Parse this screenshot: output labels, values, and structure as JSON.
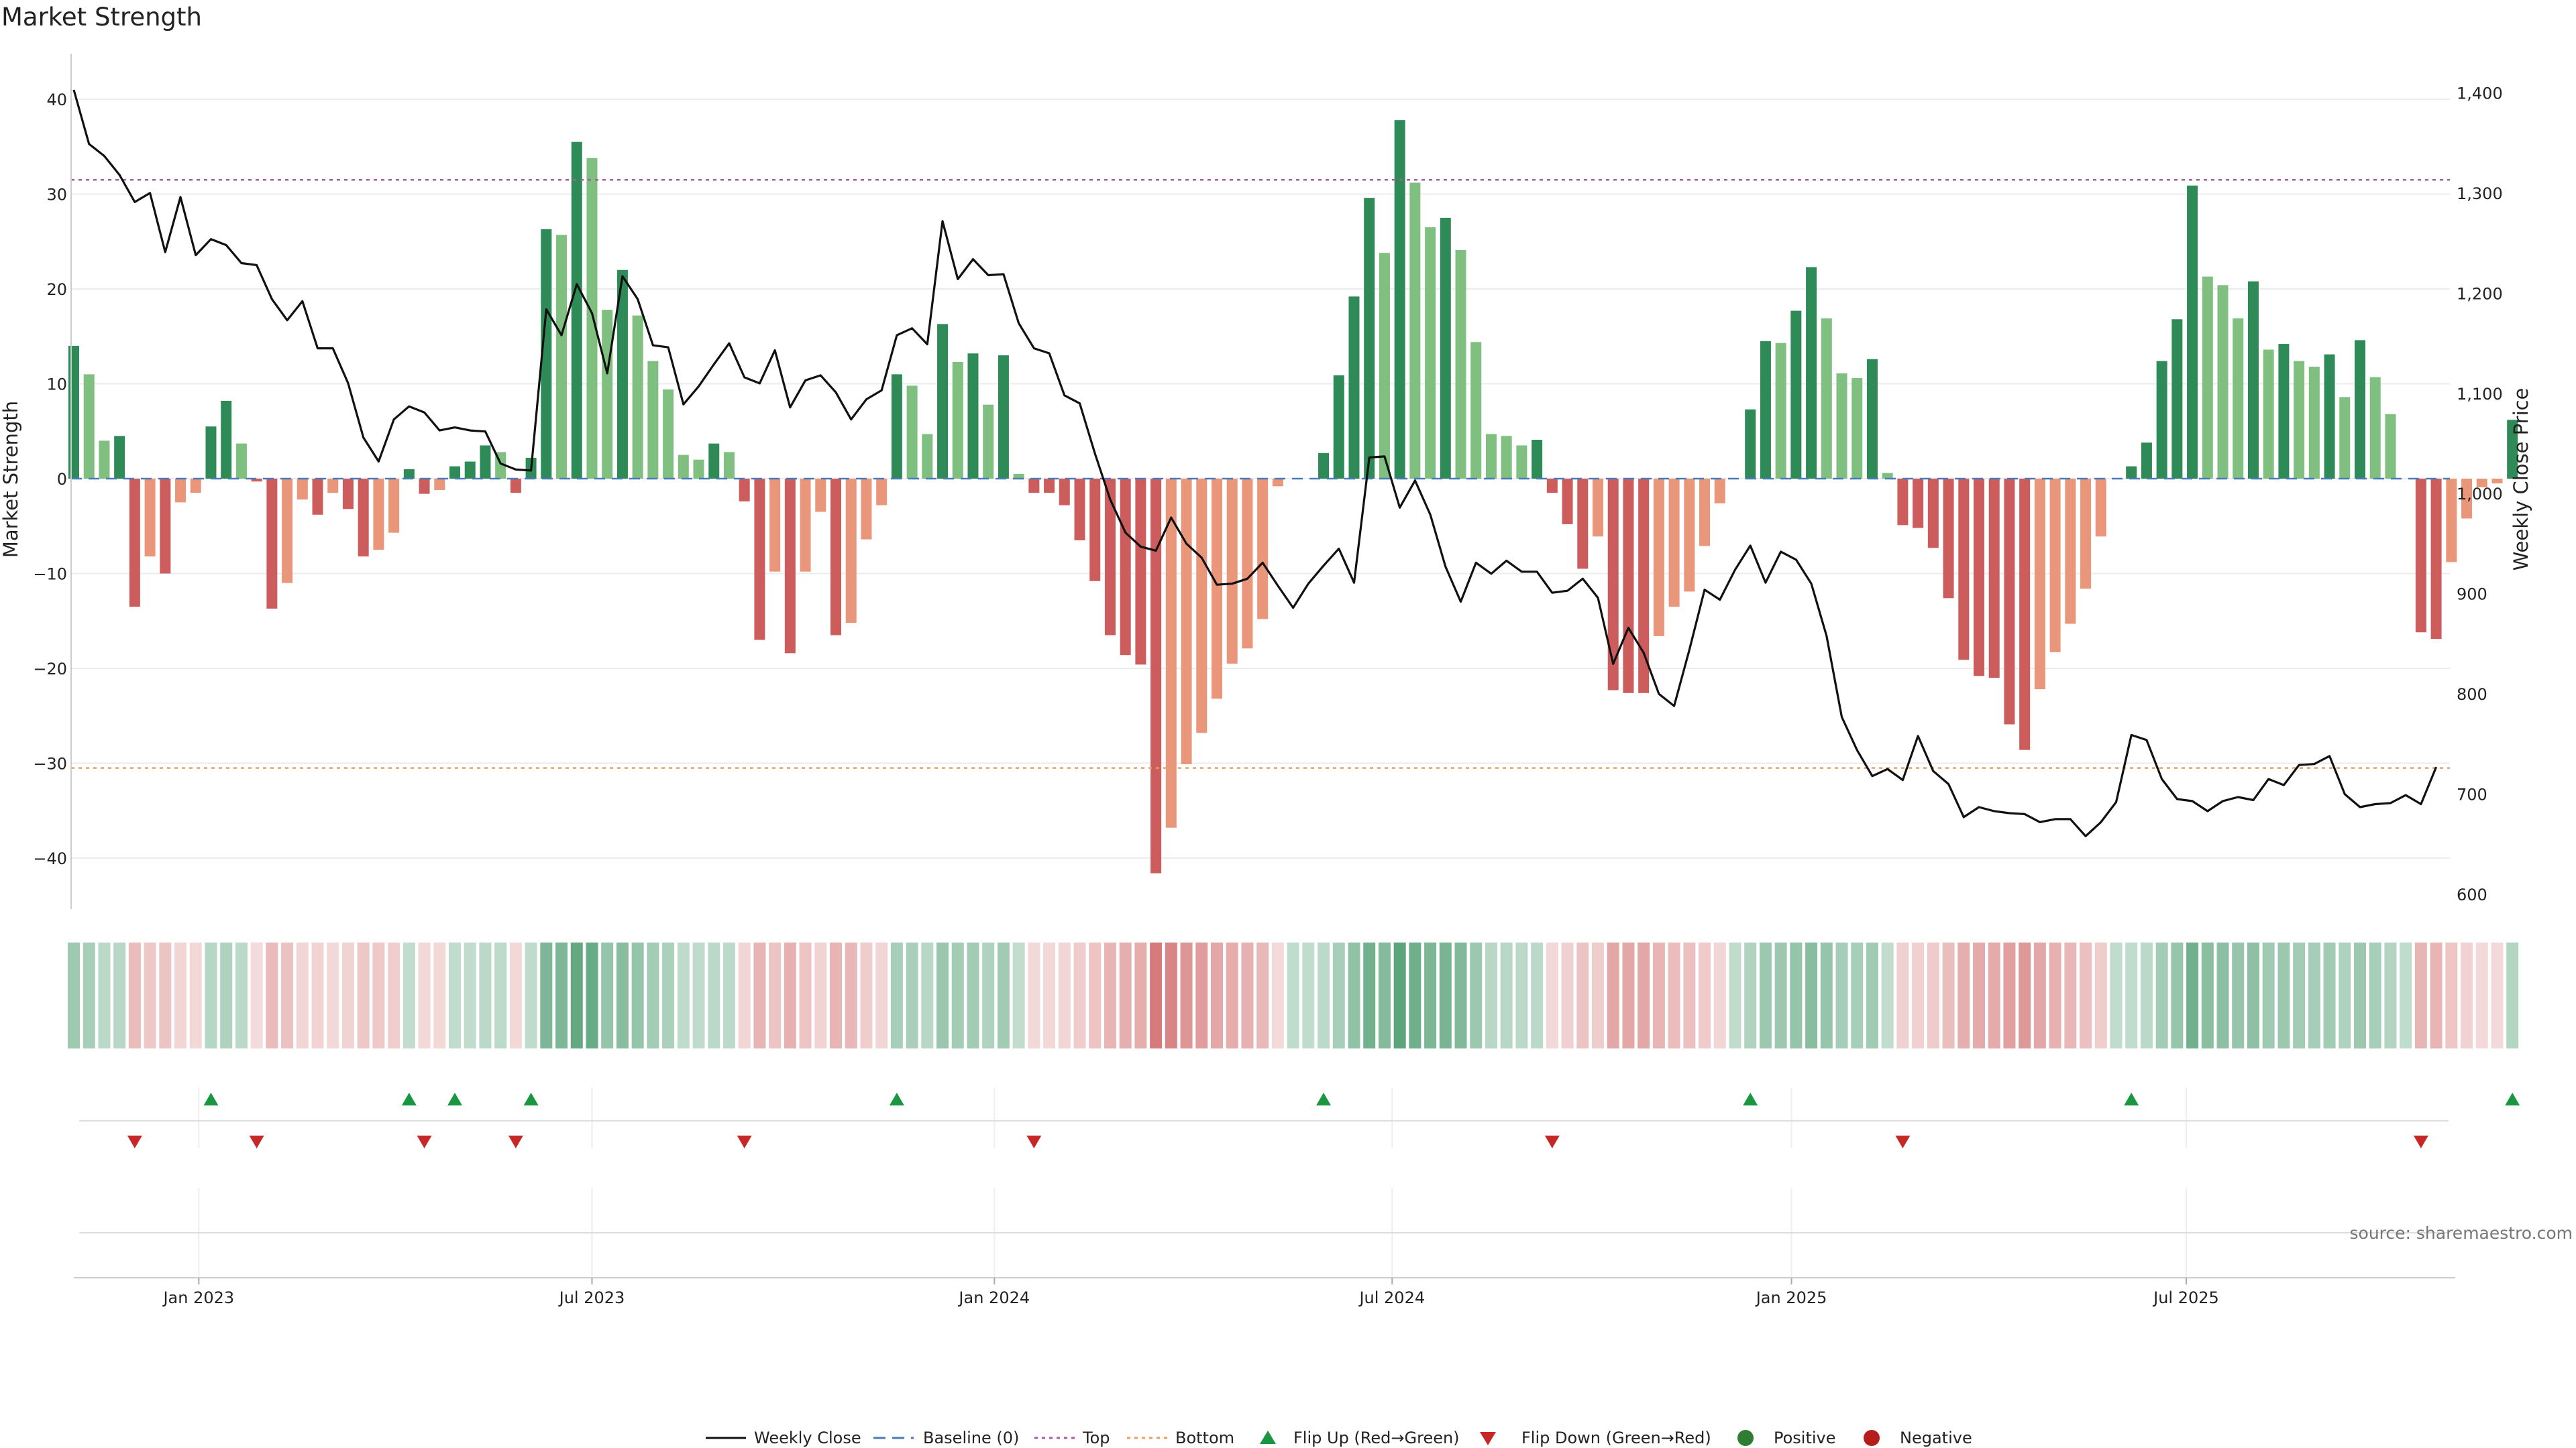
{
  "title": "Market Strength",
  "source": "source: sharemaestro.com",
  "legend": {
    "weekly_close": "Weekly Close",
    "baseline": "Baseline (0)",
    "top": "Top",
    "bottom": "Bottom",
    "flip_up": "Flip Up (Red→Green)",
    "flip_down": "Flip Down (Green→Red)",
    "positive": "Positive",
    "negative": "Negative"
  },
  "colors": {
    "dark_green": "#2e8b57",
    "light_green": "#7fbf7f",
    "dark_red": "#cd5c5c",
    "light_red": "#e9967a",
    "line": "#111111",
    "baseline": "#4a7ab8",
    "top": "#a65ca6",
    "bottom": "#e8a060",
    "marker_green": "#1a9641",
    "marker_red": "#c62828"
  },
  "chart_data": {
    "type": "bar",
    "title": "Market Strength",
    "ylabel_left": "Market Strength",
    "ylabel_right": "Weekly Close Price",
    "ylim_left": [
      -45,
      43
    ],
    "ylim_right": [
      590,
      1405
    ],
    "yticks_left": [
      40,
      30,
      20,
      10,
      0,
      -10,
      -20,
      -30,
      -40
    ],
    "yticks_right": [
      1400,
      1300,
      1200,
      1100,
      1000,
      900,
      800,
      700,
      600
    ],
    "ytick_labels_right": [
      "1,400",
      "1,300",
      "1,200",
      "1,100",
      "1,000",
      "900",
      "800",
      "700",
      "600"
    ],
    "x_ticks": [
      {
        "label": "Jan 2023",
        "week": 8.2
      },
      {
        "label": "Jul 2023",
        "week": 34.0
      },
      {
        "label": "Jan 2024",
        "week": 60.4
      },
      {
        "label": "Jul 2024",
        "week": 86.5
      },
      {
        "label": "Jan 2025",
        "week": 112.7
      },
      {
        "label": "Jul 2025",
        "week": 138.6
      }
    ],
    "top_level": 31.5,
    "bottom_level": -30.5,
    "strength": [
      14,
      11,
      4,
      4.5,
      -13.5,
      -8.2,
      -10,
      -2.5,
      -1.5,
      5.5,
      8.2,
      3.7,
      -0.3,
      -13.7,
      -11,
      -2.2,
      -3.8,
      -1.5,
      -3.2,
      -8.2,
      -7.5,
      -5.7,
      1,
      -1.6,
      -1.2,
      1.3,
      1.8,
      3.5,
      2.8,
      -1.5,
      2.2,
      26.3,
      25.7,
      35.5,
      33.8,
      17.8,
      22,
      17.2,
      12.4,
      9.4,
      2.5,
      2,
      3.7,
      2.8,
      -2.4,
      -17,
      -9.8,
      -18.4,
      -9.8,
      -3.5,
      -16.5,
      -15.2,
      -6.4,
      -2.8,
      11,
      9.8,
      4.7,
      16.3,
      12.3,
      13.2,
      7.8,
      13,
      0.5,
      -1.5,
      -1.5,
      -2.8,
      -6.5,
      -10.8,
      -16.5,
      -18.6,
      -19.6,
      -41.6,
      -36.8,
      -30.1,
      -26.8,
      -23.2,
      -19.5,
      -17.9,
      -14.8,
      -0.8,
      0,
      0,
      2.7,
      10.9,
      19.2,
      29.6,
      23.8,
      37.8,
      31.2,
      26.5,
      27.5,
      24.1,
      14.4,
      4.7,
      4.5,
      3.5,
      4.1,
      -1.5,
      -4.8,
      -9.5,
      -6.1,
      -22.3,
      -22.6,
      -22.6,
      -16.6,
      -13.5,
      -11.9,
      -7.1,
      -2.6,
      0,
      7.3,
      14.5,
      14.3,
      17.7,
      22.3,
      16.9,
      11.1,
      10.6,
      12.6,
      0.6,
      -4.9,
      -5.2,
      -7.3,
      -12.6,
      -19.1,
      -20.8,
      -21,
      -25.9,
      -28.6,
      -22.2,
      -18.3,
      -15.3,
      -11.6,
      -6.1,
      0,
      1.3,
      3.8,
      12.4,
      16.8,
      30.9,
      21.3,
      20.4,
      16.9,
      20.8,
      13.6,
      14.2,
      12.4,
      11.8,
      13.1,
      8.6,
      14.6,
      10.7,
      6.8,
      0,
      -16.2,
      -16.9,
      -8.8,
      -4.2,
      -0.9,
      -0.5,
      6.2
    ],
    "close": [
      1403,
      1349,
      1337,
      1318,
      1291,
      1300,
      1241,
      1296,
      1238,
      1254,
      1248,
      1230,
      1228,
      1194,
      1173,
      1192,
      1145,
      1145,
      1110,
      1056,
      1032,
      1074,
      1087,
      1081,
      1063,
      1066,
      1063,
      1062,
      1030,
      1024,
      1023,
      1184,
      1158,
      1209,
      1180,
      1120,
      1217,
      1194,
      1148,
      1146,
      1089,
      1107,
      1129,
      1150,
      1116,
      1110,
      1143,
      1086,
      1113,
      1118,
      1101,
      1074,
      1094,
      1103,
      1158,
      1165,
      1149,
      1272,
      1214,
      1234,
      1218,
      1219,
      1170,
      1145,
      1140,
      1098,
      1090,
      1040,
      994,
      961,
      947,
      943,
      976,
      950,
      936,
      909,
      910,
      915,
      931,
      908,
      886,
      910,
      928,
      945,
      911,
      1036,
      1037,
      986,
      1013,
      979,
      927,
      892,
      931,
      920,
      933,
      922,
      922,
      901,
      903,
      915,
      896,
      830,
      866,
      841,
      800,
      788,
      844,
      904,
      894,
      924,
      948,
      911,
      942,
      934,
      910,
      858,
      777,
      744,
      718,
      725,
      714,
      758,
      723,
      710,
      677,
      687,
      683,
      681,
      680,
      672,
      675,
      675,
      658,
      672,
      692,
      759,
      754,
      715,
      695,
      693,
      683,
      693,
      697,
      694,
      715,
      709,
      729,
      730,
      738,
      700,
      687,
      690,
      691,
      699,
      690,
      727
    ]
  }
}
